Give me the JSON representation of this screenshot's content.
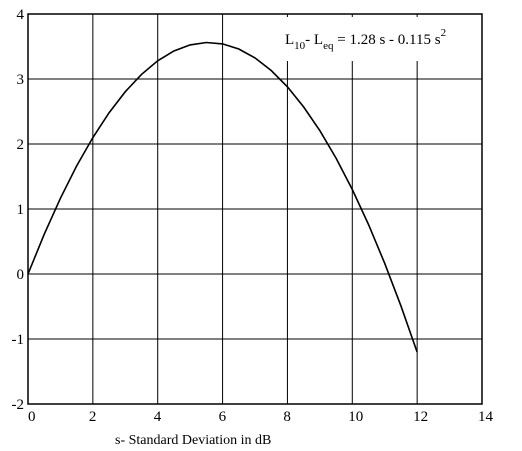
{
  "chart_data": {
    "type": "line",
    "title": "",
    "xlabel": "s- Standard Deviation in dB",
    "ylabel": "",
    "xlim": [
      0,
      14
    ],
    "ylim": [
      -2,
      4
    ],
    "x_ticks": [
      0,
      2,
      4,
      6,
      8,
      10,
      12,
      14
    ],
    "y_ticks": [
      -2,
      -1,
      0,
      1,
      2,
      3,
      4
    ],
    "grid": true,
    "annotation": {
      "lhs_main": "L",
      "lhs_sub1": "10",
      "minus": "- L",
      "lhs_sub2": "eq",
      "rhs": " = 1.28 s - 0.115 s",
      "sup": "2"
    },
    "series": [
      {
        "x": [
          0,
          0.5,
          1,
          1.5,
          2,
          2.5,
          3,
          3.5,
          4,
          4.5,
          5,
          5.5,
          6,
          6.5,
          7,
          7.5,
          8,
          8.5,
          9,
          9.5,
          10,
          10.5,
          11,
          11.5,
          12
        ],
        "y": [
          0,
          0.611,
          1.165,
          1.661,
          2.1,
          2.481,
          2.805,
          3.071,
          3.28,
          3.431,
          3.525,
          3.561,
          3.54,
          3.461,
          3.325,
          3.131,
          2.88,
          2.571,
          2.205,
          1.781,
          1.3,
          0.761,
          0.165,
          -0.489,
          -1.2
        ]
      }
    ],
    "colors": {
      "line": "#000000",
      "grid": "#000000"
    }
  }
}
